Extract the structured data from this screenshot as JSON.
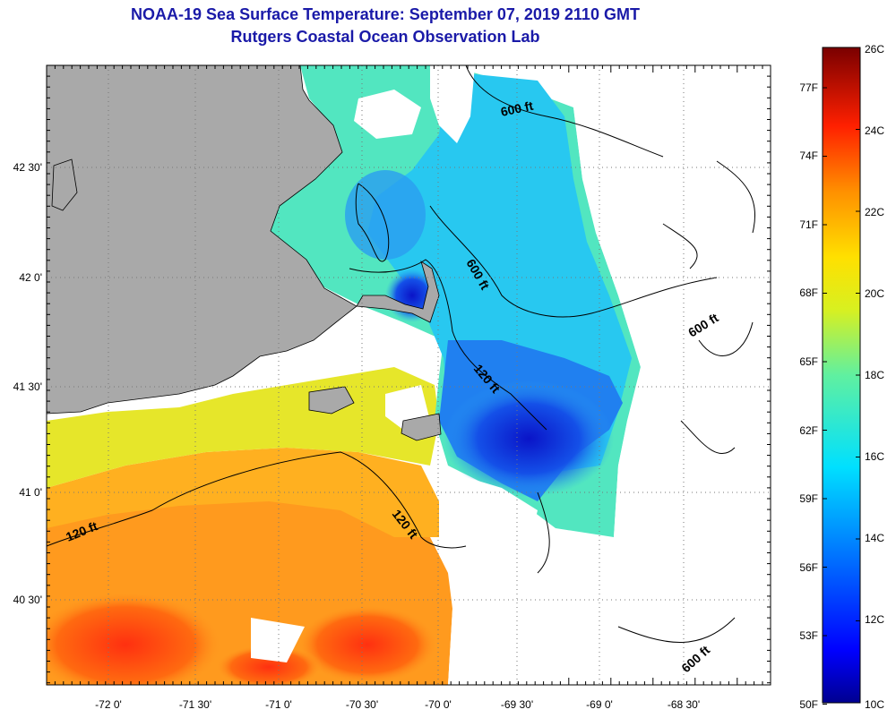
{
  "header": {
    "title_line1": "NOAA-19 Sea Surface Temperature:  September 07, 2019 2110 GMT",
    "title_line2": "Rutgers Coastal Ocean Observation Lab"
  },
  "map": {
    "lon_ticks": [
      "-72 0'",
      "-71 30'",
      "-71 0'",
      "-70 30'",
      "-70 0'",
      "-69 30'",
      "-69 0'",
      "-68 30'"
    ],
    "lat_ticks": [
      "42 30'",
      "42 0'",
      "41 30'",
      "41 0'",
      "40 30'"
    ],
    "depth_contours": [
      "600 ft",
      "600 ft",
      "600 ft",
      "600 ft",
      "120 ft",
      "120 ft",
      "120 ft"
    ],
    "colors": {
      "land": "#a9a9a9",
      "cloud": "#ffffff",
      "grid": "#777777"
    }
  },
  "colorbar": {
    "celsius_labels": [
      "26C",
      "24C",
      "22C",
      "20C",
      "18C",
      "16C",
      "14C",
      "12C",
      "10C"
    ],
    "fahrenheit_labels": [
      "77F",
      "74F",
      "71F",
      "68F",
      "65F",
      "62F",
      "59F",
      "56F",
      "53F",
      "50F"
    ]
  }
}
